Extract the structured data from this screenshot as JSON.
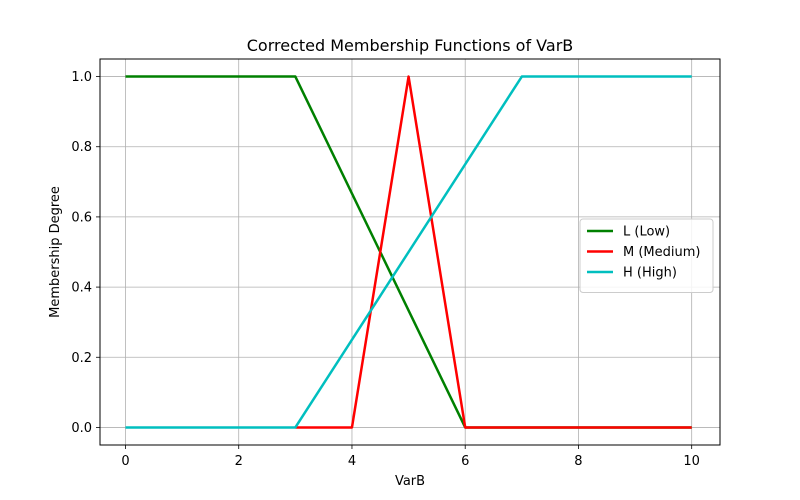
{
  "chart_data": {
    "type": "line",
    "title": "Corrected Membership Functions of VarB",
    "xlabel": "VarB",
    "ylabel": "Membership Degree",
    "xlim": [
      -0.45,
      10.5
    ],
    "ylim": [
      -0.05,
      1.05
    ],
    "xticks": [
      "0",
      "2",
      "4",
      "6",
      "8",
      "10"
    ],
    "yticks": [
      "0.0",
      "0.2",
      "0.4",
      "0.6",
      "0.8",
      "1.0"
    ],
    "grid": true,
    "legend_position": "center-right",
    "series": [
      {
        "name": "L (Low)",
        "color": "#008000",
        "x": [
          0,
          3,
          6,
          10
        ],
        "y": [
          1,
          1,
          0,
          0
        ]
      },
      {
        "name": "M (Medium)",
        "color": "#ff0000",
        "x": [
          3,
          4,
          5,
          6,
          10
        ],
        "y": [
          0,
          0,
          1,
          0,
          0
        ]
      },
      {
        "name": "H (High)",
        "color": "#00bfbf",
        "x": [
          0,
          3,
          7,
          10
        ],
        "y": [
          0,
          0,
          1,
          1
        ]
      }
    ]
  }
}
